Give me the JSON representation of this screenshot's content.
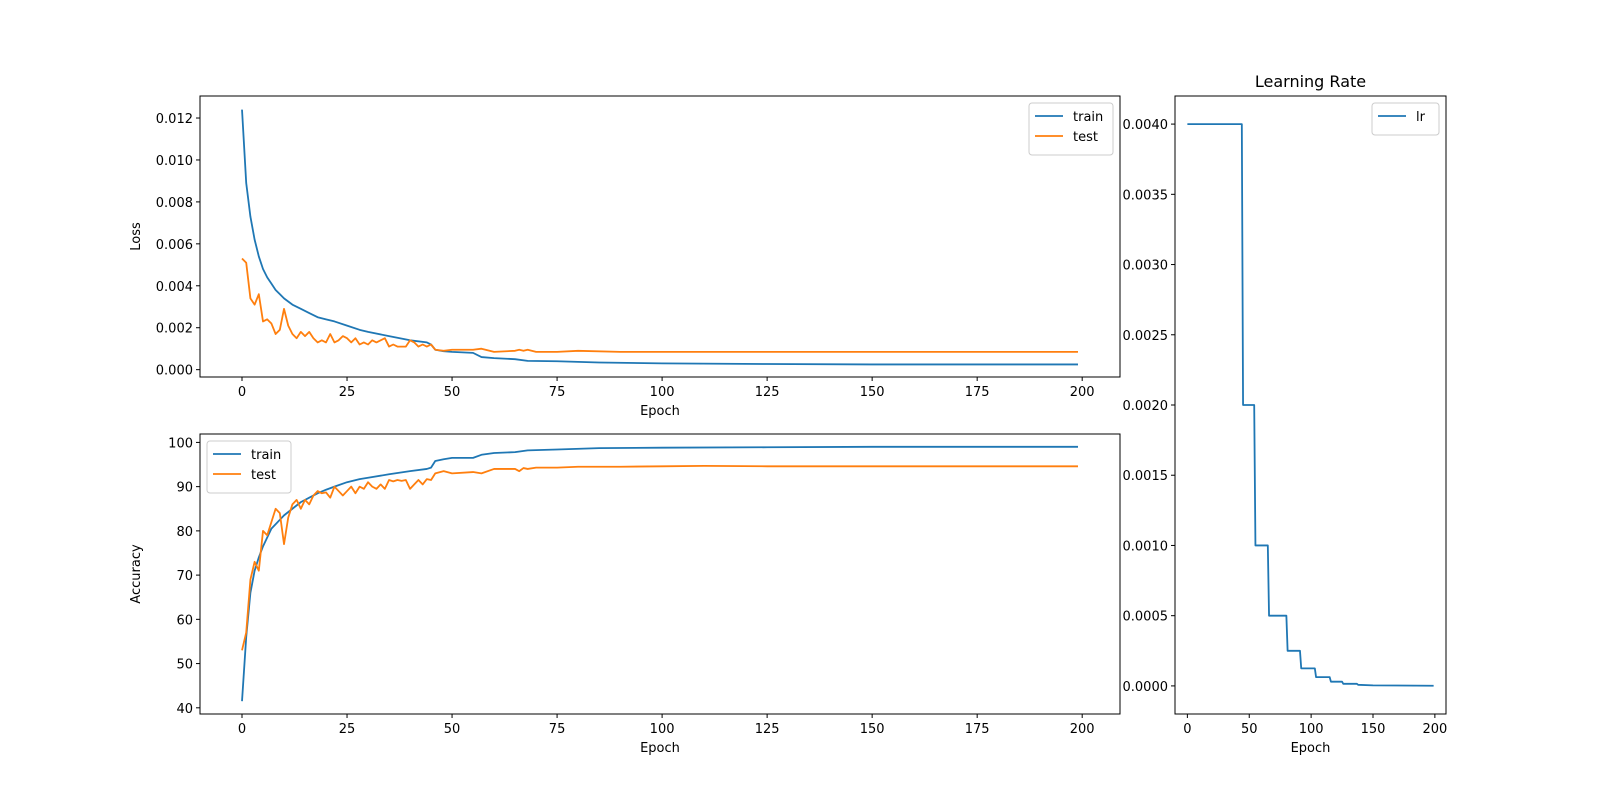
{
  "colors": {
    "train": "#1f77b4",
    "test": "#ff7f0e",
    "lr": "#1f77b4"
  },
  "chart_data": [
    {
      "id": "loss",
      "type": "line",
      "title": "",
      "xlabel": "Epoch",
      "ylabel": "Loss",
      "xlim": [
        -10,
        209
      ],
      "ylim": [
        -0.00035,
        0.01305
      ],
      "xticks": [
        0,
        25,
        50,
        75,
        100,
        125,
        150,
        175,
        200
      ],
      "yticks": [
        0.0,
        0.002,
        0.004,
        0.006,
        0.008,
        0.01,
        0.012
      ],
      "ytick_labels": [
        "0.000",
        "0.002",
        "0.004",
        "0.006",
        "0.008",
        "0.010",
        "0.012"
      ],
      "legend_position": "upper right",
      "series": [
        {
          "name": "train",
          "color": "train",
          "points": [
            [
              0,
              0.0124
            ],
            [
              1,
              0.0089
            ],
            [
              2,
              0.0073
            ],
            [
              3,
              0.0062
            ],
            [
              4,
              0.0054
            ],
            [
              5,
              0.0048
            ],
            [
              6,
              0.0044
            ],
            [
              7,
              0.0041
            ],
            [
              8,
              0.0038
            ],
            [
              9,
              0.0036
            ],
            [
              10,
              0.0034
            ],
            [
              12,
              0.0031
            ],
            [
              14,
              0.0029
            ],
            [
              16,
              0.0027
            ],
            [
              18,
              0.0025
            ],
            [
              20,
              0.0024
            ],
            [
              22,
              0.0023
            ],
            [
              25,
              0.0021
            ],
            [
              28,
              0.0019
            ],
            [
              30,
              0.0018
            ],
            [
              35,
              0.0016
            ],
            [
              40,
              0.0014
            ],
            [
              44,
              0.0013
            ],
            [
              45,
              0.0012
            ],
            [
              46,
              0.00095
            ],
            [
              48,
              0.00088
            ],
            [
              50,
              0.00085
            ],
            [
              55,
              0.0008
            ],
            [
              57,
              0.0006
            ],
            [
              60,
              0.00055
            ],
            [
              65,
              0.0005
            ],
            [
              68,
              0.00042
            ],
            [
              75,
              0.0004
            ],
            [
              85,
              0.00034
            ],
            [
              100,
              0.0003
            ],
            [
              125,
              0.00027
            ],
            [
              150,
              0.00025
            ],
            [
              175,
              0.00025
            ],
            [
              199,
              0.00025
            ]
          ]
        },
        {
          "name": "test",
          "color": "test",
          "points": [
            [
              0,
              0.0053
            ],
            [
              1,
              0.0051
            ],
            [
              2,
              0.0034
            ],
            [
              3,
              0.0031
            ],
            [
              4,
              0.0036
            ],
            [
              5,
              0.0023
            ],
            [
              6,
              0.0024
            ],
            [
              7,
              0.0022
            ],
            [
              8,
              0.0017
            ],
            [
              9,
              0.0019
            ],
            [
              10,
              0.0029
            ],
            [
              11,
              0.0021
            ],
            [
              12,
              0.0017
            ],
            [
              13,
              0.0015
            ],
            [
              14,
              0.0018
            ],
            [
              15,
              0.0016
            ],
            [
              16,
              0.0018
            ],
            [
              17,
              0.0015
            ],
            [
              18,
              0.0013
            ],
            [
              19,
              0.0014
            ],
            [
              20,
              0.0013
            ],
            [
              21,
              0.0017
            ],
            [
              22,
              0.0013
            ],
            [
              23,
              0.0014
            ],
            [
              24,
              0.0016
            ],
            [
              25,
              0.0015
            ],
            [
              26,
              0.0013
            ],
            [
              27,
              0.0015
            ],
            [
              28,
              0.0012
            ],
            [
              29,
              0.0013
            ],
            [
              30,
              0.0012
            ],
            [
              31,
              0.0014
            ],
            [
              32,
              0.0013
            ],
            [
              33,
              0.0014
            ],
            [
              34,
              0.0015
            ],
            [
              35,
              0.0011
            ],
            [
              36,
              0.0012
            ],
            [
              37,
              0.0011
            ],
            [
              38,
              0.0011
            ],
            [
              39,
              0.0011
            ],
            [
              40,
              0.0014
            ],
            [
              41,
              0.0013
            ],
            [
              42,
              0.0011
            ],
            [
              43,
              0.0012
            ],
            [
              44,
              0.0011
            ],
            [
              45,
              0.0012
            ],
            [
              46,
              0.00095
            ],
            [
              48,
              0.0009
            ],
            [
              50,
              0.00095
            ],
            [
              55,
              0.00095
            ],
            [
              57,
              0.001
            ],
            [
              60,
              0.00085
            ],
            [
              65,
              0.0009
            ],
            [
              66,
              0.00095
            ],
            [
              67,
              0.0009
            ],
            [
              68,
              0.00095
            ],
            [
              70,
              0.00085
            ],
            [
              75,
              0.00085
            ],
            [
              80,
              0.0009
            ],
            [
              90,
              0.00085
            ],
            [
              100,
              0.00085
            ],
            [
              125,
              0.00085
            ],
            [
              150,
              0.00085
            ],
            [
              175,
              0.00085
            ],
            [
              199,
              0.00085
            ]
          ]
        }
      ]
    },
    {
      "id": "accuracy",
      "type": "line",
      "title": "",
      "xlabel": "Epoch",
      "ylabel": "Accuracy",
      "xlim": [
        -10,
        209
      ],
      "ylim": [
        38.6,
        101.9
      ],
      "xticks": [
        0,
        25,
        50,
        75,
        100,
        125,
        150,
        175,
        200
      ],
      "yticks": [
        40,
        50,
        60,
        70,
        80,
        90,
        100
      ],
      "ytick_labels": [
        "40",
        "50",
        "60",
        "70",
        "80",
        "90",
        "100"
      ],
      "legend_position": "upper left",
      "series": [
        {
          "name": "train",
          "color": "train",
          "points": [
            [
              0,
              41.5
            ],
            [
              1,
              56
            ],
            [
              2,
              66
            ],
            [
              3,
              71
            ],
            [
              4,
              74
            ],
            [
              5,
              76.5
            ],
            [
              6,
              78.5
            ],
            [
              7,
              80.5
            ],
            [
              8,
              81.5
            ],
            [
              9,
              82.5
            ],
            [
              10,
              83.5
            ],
            [
              12,
              85
            ],
            [
              14,
              86.5
            ],
            [
              16,
              87.5
            ],
            [
              18,
              88.5
            ],
            [
              20,
              89.3
            ],
            [
              22,
              90
            ],
            [
              25,
              91
            ],
            [
              28,
              91.7
            ],
            [
              30,
              92
            ],
            [
              35,
              92.8
            ],
            [
              40,
              93.5
            ],
            [
              44,
              94
            ],
            [
              45,
              94.3
            ],
            [
              46,
              95.8
            ],
            [
              48,
              96.2
            ],
            [
              50,
              96.5
            ],
            [
              55,
              96.5
            ],
            [
              57,
              97.2
            ],
            [
              60,
              97.6
            ],
            [
              65,
              97.8
            ],
            [
              68,
              98.2
            ],
            [
              75,
              98.4
            ],
            [
              85,
              98.7
            ],
            [
              100,
              98.8
            ],
            [
              125,
              98.9
            ],
            [
              150,
              99
            ],
            [
              175,
              99
            ],
            [
              199,
              99
            ]
          ]
        },
        {
          "name": "test",
          "color": "test",
          "points": [
            [
              0,
              53
            ],
            [
              1,
              57
            ],
            [
              2,
              69
            ],
            [
              3,
              73
            ],
            [
              4,
              71
            ],
            [
              5,
              80
            ],
            [
              6,
              79
            ],
            [
              7,
              82
            ],
            [
              8,
              85
            ],
            [
              9,
              84
            ],
            [
              10,
              77
            ],
            [
              11,
              83
            ],
            [
              12,
              86
            ],
            [
              13,
              87
            ],
            [
              14,
              85
            ],
            [
              15,
              87
            ],
            [
              16,
              86
            ],
            [
              17,
              88
            ],
            [
              18,
              89
            ],
            [
              19,
              88.5
            ],
            [
              20,
              88.7
            ],
            [
              21,
              87.5
            ],
            [
              22,
              90
            ],
            [
              23,
              89
            ],
            [
              24,
              88
            ],
            [
              25,
              89
            ],
            [
              26,
              90
            ],
            [
              27,
              88.5
            ],
            [
              28,
              90
            ],
            [
              29,
              89.5
            ],
            [
              30,
              91
            ],
            [
              31,
              90
            ],
            [
              32,
              89.5
            ],
            [
              33,
              90.5
            ],
            [
              34,
              89.5
            ],
            [
              35,
              91.5
            ],
            [
              36,
              91.2
            ],
            [
              37,
              91.5
            ],
            [
              38,
              91.3
            ],
            [
              39,
              91.5
            ],
            [
              40,
              89.5
            ],
            [
              41,
              90.5
            ],
            [
              42,
              91.5
            ],
            [
              43,
              90.5
            ],
            [
              44,
              91.7
            ],
            [
              45,
              91.5
            ],
            [
              46,
              93
            ],
            [
              48,
              93.5
            ],
            [
              50,
              93
            ],
            [
              55,
              93.3
            ],
            [
              57,
              93
            ],
            [
              60,
              94
            ],
            [
              65,
              94
            ],
            [
              66,
              93.5
            ],
            [
              67,
              94.2
            ],
            [
              68,
              94
            ],
            [
              70,
              94.3
            ],
            [
              75,
              94.3
            ],
            [
              80,
              94.5
            ],
            [
              90,
              94.5
            ],
            [
              100,
              94.6
            ],
            [
              110,
              94.7
            ],
            [
              125,
              94.6
            ],
            [
              150,
              94.6
            ],
            [
              175,
              94.6
            ],
            [
              199,
              94.6
            ]
          ]
        }
      ]
    },
    {
      "id": "lr",
      "type": "line",
      "title": "Learning Rate",
      "xlabel": "Epoch",
      "ylabel": "",
      "xlim": [
        -10,
        209
      ],
      "ylim": [
        -0.0002,
        0.0042
      ],
      "xticks": [
        0,
        50,
        100,
        150,
        200
      ],
      "yticks": [
        0.0,
        0.0005,
        0.001,
        0.0015,
        0.002,
        0.0025,
        0.003,
        0.0035,
        0.004
      ],
      "ytick_labels": [
        "0.0000",
        "0.0005",
        "0.0010",
        "0.0015",
        "0.0020",
        "0.0025",
        "0.0030",
        "0.0035",
        "0.0040"
      ],
      "legend_position": "upper right",
      "series": [
        {
          "name": "lr",
          "color": "lr",
          "points": [
            [
              0,
              0.004
            ],
            [
              44,
              0.004
            ],
            [
              45,
              0.002
            ],
            [
              54,
              0.002
            ],
            [
              55,
              0.001
            ],
            [
              65,
              0.001
            ],
            [
              66,
              0.0005
            ],
            [
              80,
              0.0005
            ],
            [
              81,
              0.00025
            ],
            [
              91,
              0.00025
            ],
            [
              92,
              0.000125
            ],
            [
              103,
              0.000125
            ],
            [
              104,
              6.25e-05
            ],
            [
              115,
              6.25e-05
            ],
            [
              116,
              3e-05
            ],
            [
              125,
              3e-05
            ],
            [
              126,
              1.5e-05
            ],
            [
              137,
              1.5e-05
            ],
            [
              138,
              8e-06
            ],
            [
              150,
              4e-06
            ],
            [
              199,
              1e-06
            ]
          ]
        }
      ]
    }
  ]
}
